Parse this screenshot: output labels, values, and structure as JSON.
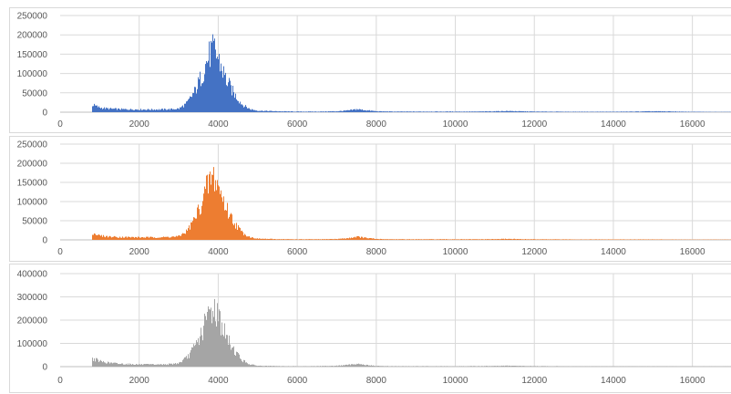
{
  "chart_data": [
    {
      "type": "bar",
      "title": "",
      "xlabel": "",
      "ylabel": "",
      "color": "#4472c4",
      "xlim": [
        0,
        17000
      ],
      "ylim": [
        0,
        250000
      ],
      "x_ticks": [
        0,
        2000,
        4000,
        6000,
        8000,
        10000,
        12000,
        14000,
        16000
      ],
      "y_ticks": [
        0,
        50000,
        100000,
        150000,
        200000,
        250000
      ],
      "grid": true,
      "profile": {
        "x": [
          800,
          900,
          1000,
          1200,
          1500,
          2000,
          2500,
          2800,
          3000,
          3200,
          3400,
          3600,
          3700,
          3800,
          3900,
          4000,
          4100,
          4200,
          4400,
          4600,
          4800,
          5000,
          5500,
          6000,
          6500,
          7000,
          7300,
          7500,
          7700,
          8000,
          8500,
          9000,
          10000,
          10500,
          11000,
          11300,
          11600,
          12000,
          13000,
          14000,
          14500,
          15000,
          15400,
          15800,
          16500,
          17000
        ],
        "y": [
          25000,
          20000,
          15000,
          12000,
          10000,
          9000,
          9000,
          10000,
          12000,
          30000,
          70000,
          130000,
          170000,
          200000,
          205000,
          175000,
          140000,
          105000,
          60000,
          25000,
          10000,
          5000,
          3000,
          2000,
          2000,
          3000,
          6000,
          10000,
          7000,
          3000,
          2000,
          2000,
          2000,
          2000,
          3000,
          4000,
          3000,
          2000,
          1500,
          1500,
          2000,
          3000,
          2500,
          1500,
          1000,
          1000
        ]
      }
    },
    {
      "type": "bar",
      "title": "",
      "xlabel": "",
      "ylabel": "",
      "color": "#ed7d31",
      "xlim": [
        0,
        17000
      ],
      "ylim": [
        0,
        250000
      ],
      "x_ticks": [
        0,
        2000,
        4000,
        6000,
        8000,
        10000,
        12000,
        14000,
        16000
      ],
      "y_ticks": [
        0,
        50000,
        100000,
        150000,
        200000,
        250000
      ],
      "grid": true,
      "profile": {
        "x": [
          800,
          900,
          1000,
          1200,
          1500,
          2000,
          2500,
          2800,
          3000,
          3200,
          3400,
          3600,
          3700,
          3800,
          3900,
          4000,
          4100,
          4200,
          4400,
          4600,
          4800,
          5000,
          5500,
          6000,
          6500,
          7000,
          7300,
          7500,
          7700,
          8000,
          8500,
          9000,
          10000,
          10500,
          11000,
          11300,
          11600,
          12000,
          13000,
          14000,
          15000,
          16000,
          17000
        ],
        "y": [
          24000,
          19000,
          14000,
          11000,
          9500,
          8500,
          8500,
          10000,
          12000,
          30000,
          72000,
          135000,
          175000,
          205000,
          208000,
          178000,
          140000,
          105000,
          58000,
          24000,
          9000,
          4000,
          2500,
          2000,
          2000,
          3000,
          6000,
          11000,
          7000,
          3000,
          2000,
          2000,
          2000,
          2000,
          2500,
          3500,
          2500,
          2000,
          1500,
          1500,
          1500,
          1000,
          1000
        ]
      }
    },
    {
      "type": "bar",
      "title": "",
      "xlabel": "",
      "ylabel": "",
      "color": "#a5a5a5",
      "xlim": [
        0,
        17000
      ],
      "ylim": [
        0,
        400000
      ],
      "x_ticks": [
        0,
        2000,
        4000,
        6000,
        8000,
        10000,
        12000,
        14000,
        16000
      ],
      "y_ticks": [
        0,
        100000,
        200000,
        300000,
        400000
      ],
      "grid": true,
      "profile": {
        "x": [
          800,
          900,
          1000,
          1200,
          1500,
          2000,
          2500,
          2800,
          3000,
          3200,
          3400,
          3600,
          3700,
          3800,
          3900,
          4000,
          4100,
          4200,
          4400,
          4600,
          4800,
          5000,
          5500,
          6000,
          6500,
          7000,
          7300,
          7500,
          7700,
          8000,
          8500,
          9000,
          10000,
          10500,
          11000,
          11300,
          11600,
          12000,
          13000,
          14000,
          15000,
          16000,
          17000
        ],
        "y": [
          45000,
          38000,
          30000,
          22000,
          16000,
          12000,
          12000,
          14000,
          20000,
          50000,
          110000,
          200000,
          270000,
          310000,
          320000,
          280000,
          220000,
          160000,
          90000,
          35000,
          12000,
          5000,
          3000,
          2500,
          3000,
          5000,
          10000,
          16000,
          10000,
          4000,
          2500,
          2500,
          2500,
          3000,
          4000,
          5000,
          4000,
          3000,
          2000,
          2000,
          2000,
          1500,
          1500
        ]
      }
    }
  ]
}
